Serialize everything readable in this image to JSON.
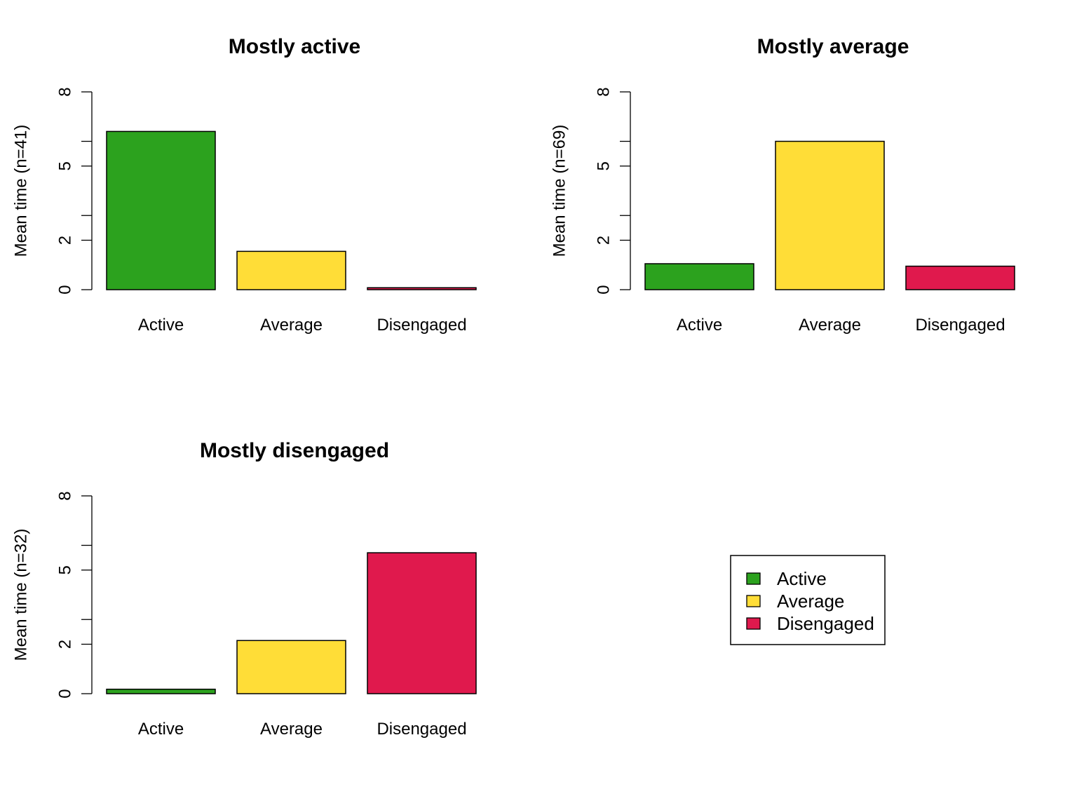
{
  "chart_data": [
    {
      "type": "bar",
      "title": "Mostly active",
      "ylabel": "Mean time (n=41)",
      "categories": [
        "Active",
        "Average",
        "Disengaged"
      ],
      "values": [
        6.4,
        1.55,
        0.08
      ],
      "ylim": [
        0,
        8
      ],
      "yticks": [
        0,
        2,
        3,
        5,
        6,
        8
      ],
      "ytick_labels": [
        "0",
        "2",
        "",
        "5",
        "",
        "8"
      ]
    },
    {
      "type": "bar",
      "title": "Mostly average",
      "ylabel": "Mean time (n=69)",
      "categories": [
        "Active",
        "Average",
        "Disengaged"
      ],
      "values": [
        1.05,
        6.0,
        0.95
      ],
      "ylim": [
        0,
        8
      ],
      "yticks": [
        0,
        2,
        3,
        5,
        6,
        8
      ],
      "ytick_labels": [
        "0",
        "2",
        "",
        "5",
        "",
        "8"
      ]
    },
    {
      "type": "bar",
      "title": "Mostly disengaged",
      "ylabel": "Mean time (n=32)",
      "categories": [
        "Active",
        "Average",
        "Disengaged"
      ],
      "values": [
        0.18,
        2.15,
        5.7
      ],
      "ylim": [
        0,
        8
      ],
      "yticks": [
        0,
        2,
        3,
        5,
        6,
        8
      ],
      "ytick_labels": [
        "0",
        "2",
        "",
        "5",
        "",
        "8"
      ]
    }
  ],
  "colors": {
    "Active": "#2ca21e",
    "Average": "#ffdd37",
    "Disengaged": "#e0194d"
  },
  "legend": {
    "placement": "bottom-right panel",
    "entries": [
      "Active",
      "Average",
      "Disengaged"
    ]
  }
}
